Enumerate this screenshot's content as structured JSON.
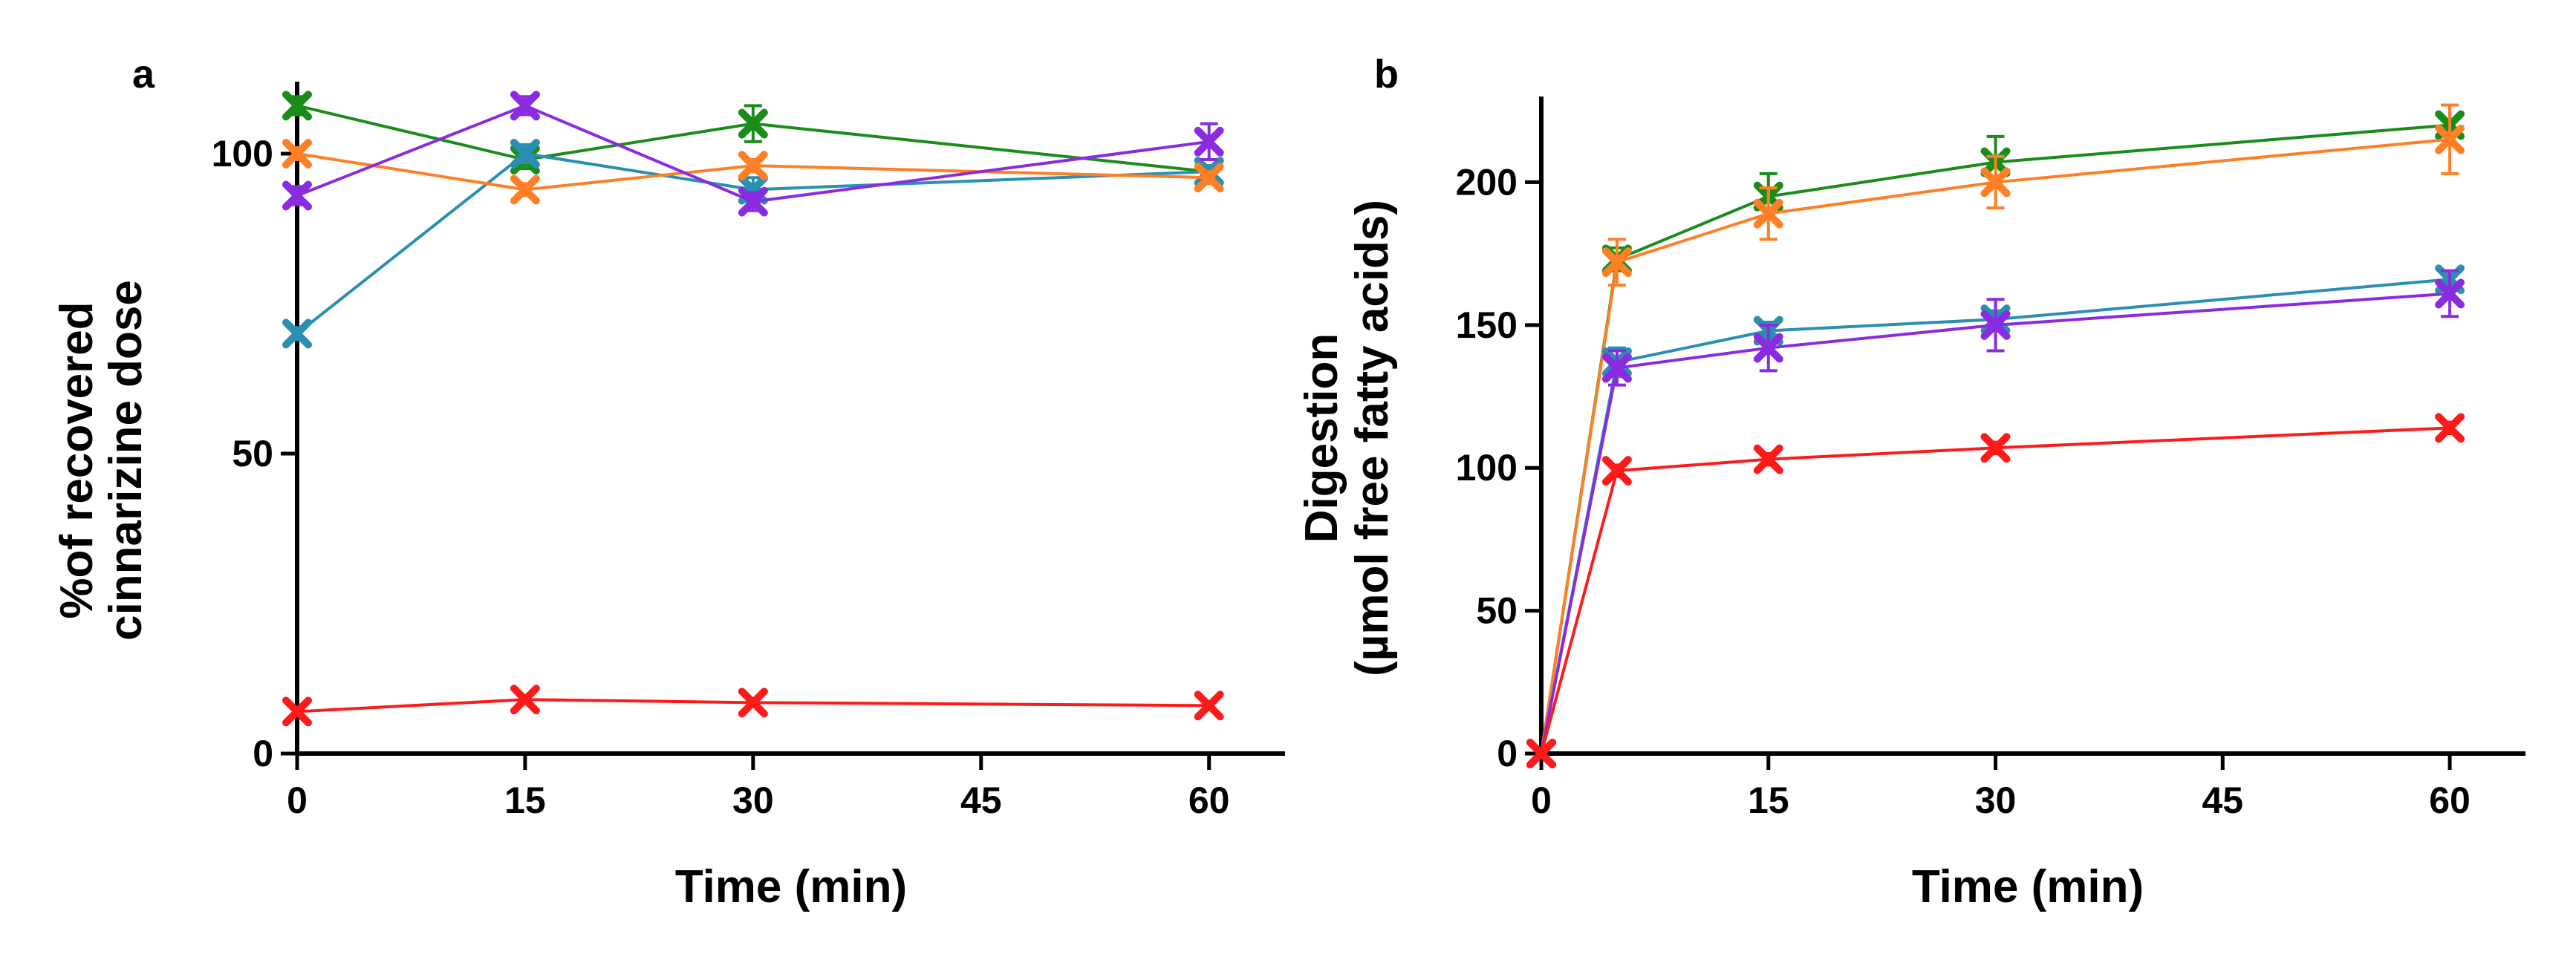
{
  "chart_data": [
    {
      "panel_label": "a",
      "type": "line",
      "xlabel": "Time (min)",
      "ylabel_lines": [
        "%of recovered",
        "cinnarizine dose"
      ],
      "xlim": [
        0,
        65
      ],
      "ylim": [
        0,
        112
      ],
      "xticks": [
        0,
        15,
        30,
        45,
        60
      ],
      "xtick_labels": [
        "0",
        "15",
        "30",
        "45",
        "60"
      ],
      "yticks": [
        0,
        50,
        100
      ],
      "ytick_labels": [
        "0",
        "50",
        "100"
      ],
      "grid": false,
      "series": [
        {
          "name": "green",
          "color": "#1a8c1a",
          "x": [
            0,
            15,
            30,
            60
          ],
          "y": [
            108,
            99,
            105,
            97
          ],
          "err": [
            1.5,
            1.5,
            3,
            1
          ]
        },
        {
          "name": "teal",
          "color": "#2a8fb0",
          "x": [
            0,
            15,
            30,
            60
          ],
          "y": [
            70,
            100,
            94,
            97
          ],
          "err": [
            1,
            1.5,
            2,
            1
          ]
        },
        {
          "name": "orange",
          "color": "#ff7f27",
          "x": [
            0,
            15,
            30,
            60
          ],
          "y": [
            100,
            94,
            98,
            96
          ],
          "err": [
            1,
            1,
            1,
            1
          ]
        },
        {
          "name": "purple",
          "color": "#8a2be2",
          "x": [
            0,
            15,
            30,
            60
          ],
          "y": [
            93,
            108,
            92,
            102
          ],
          "err": [
            1.5,
            1.5,
            1.5,
            3
          ]
        },
        {
          "name": "red",
          "color": "#ff1a1a",
          "x": [
            0,
            15,
            30,
            60
          ],
          "y": [
            7,
            9,
            8.5,
            8
          ],
          "err": [
            0.5,
            0.5,
            0.5,
            0.5
          ]
        }
      ]
    },
    {
      "panel_label": "b",
      "type": "line",
      "xlabel": "Time (min)",
      "ylabel_lines": [
        "Digestion",
        "(µmol free fatty acids)"
      ],
      "xlim": [
        0,
        65
      ],
      "ylim": [
        0,
        230
      ],
      "xticks": [
        0,
        15,
        30,
        45,
        60
      ],
      "xtick_labels": [
        "0",
        "15",
        "30",
        "45",
        "60"
      ],
      "yticks": [
        0,
        50,
        100,
        150,
        200
      ],
      "ytick_labels": [
        "0",
        "50",
        "100",
        "150",
        "200"
      ],
      "grid": false,
      "series": [
        {
          "name": "green",
          "color": "#1a8c1a",
          "x": [
            0,
            5,
            15,
            30,
            60
          ],
          "y": [
            0,
            173,
            195,
            207,
            220
          ],
          "err": [
            0,
            4,
            8,
            9,
            7
          ]
        },
        {
          "name": "orange",
          "color": "#ff7f27",
          "x": [
            0,
            5,
            15,
            30,
            60
          ],
          "y": [
            0,
            172,
            189,
            200,
            215
          ],
          "err": [
            0,
            8,
            9,
            9,
            12
          ]
        },
        {
          "name": "teal",
          "color": "#2a8fb0",
          "x": [
            0,
            5,
            15,
            30,
            60
          ],
          "y": [
            0,
            137,
            148,
            152,
            166
          ],
          "err": [
            0,
            5,
            3,
            3,
            3
          ]
        },
        {
          "name": "purple",
          "color": "#8a2be2",
          "x": [
            0,
            5,
            15,
            30,
            60
          ],
          "y": [
            0,
            135,
            142,
            150,
            161
          ],
          "err": [
            0,
            6,
            8,
            9,
            8
          ]
        },
        {
          "name": "red",
          "color": "#ff1a1a",
          "x": [
            0,
            5,
            15,
            30,
            60
          ],
          "y": [
            0,
            99,
            103,
            107,
            114
          ],
          "err": [
            0,
            2,
            2,
            2,
            2
          ]
        }
      ]
    }
  ]
}
